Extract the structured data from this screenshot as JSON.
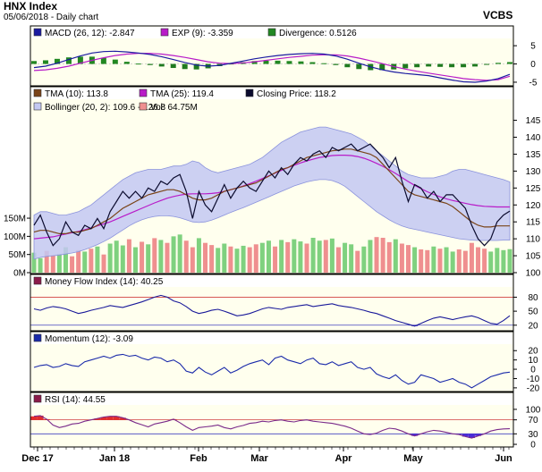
{
  "header": {
    "title": "HNX Index",
    "subtitle": "05/06/2018 - Daily chart",
    "brand": "VCBS"
  },
  "colors": {
    "panel_bg": "#ffffee",
    "frame": "#000000",
    "band_fill": "#c3c8f2",
    "band_edge": "#8a92dc",
    "price_line": "#0b0b2e",
    "tma10": "#7a4418",
    "tma25": "#b81bc8",
    "macd_line": "#1a1aa0",
    "exp_line": "#b81bc8",
    "divergence_pos": "#228822",
    "divergence_neg": "#1f7a1f",
    "vol_up": "#7fd17f",
    "vol_down": "#ef8f8f",
    "mfi_line": "#1a1a9a",
    "rsi_line": "#7a2a8a",
    "overbought_fill": "#e22c2c",
    "oversold_fill": "#4a2bd8",
    "mom_line": "#1a2aaa"
  },
  "x_axis_labels": [
    "Dec 17",
    "Jan 18",
    "Feb",
    "Mar",
    "Apr",
    "May",
    "Jun"
  ],
  "chart_data": [
    {
      "type": "line",
      "panel": "macd",
      "legend": [
        {
          "text": "MACD (26, 12): -2.847",
          "color": "#1a1aa0",
          "icon": "square-swatch-icon"
        },
        {
          "text": "EXP (9): -3.359",
          "color": "#b81bc8",
          "icon": "square-swatch-icon"
        },
        {
          "text": "Divergence: 0.5126",
          "color": "#228822",
          "icon": "square-swatch-icon"
        }
      ],
      "yticks": [
        "5",
        "0",
        "-5"
      ],
      "ylim": [
        -5.5,
        6.5
      ],
      "series": [
        {
          "name": "MACD (26, 12)",
          "values": [
            -1.0,
            -0.6,
            0.2,
            1.2,
            2.2,
            3.0,
            3.4,
            3.5,
            3.3,
            3.0,
            2.6,
            2.0,
            1.2,
            0.4,
            -0.3,
            -0.6,
            -0.4,
            0.2,
            0.8,
            1.4,
            1.9,
            2.3,
            2.6,
            2.8,
            2.9,
            2.7,
            2.2,
            1.3,
            0.2,
            -0.8,
            -1.6,
            -2.2,
            -2.6,
            -2.9,
            -3.2,
            -3.8,
            -4.4,
            -4.9,
            -5.0,
            -4.7,
            -4.0,
            -2.847
          ]
        },
        {
          "name": "EXP (9)",
          "values": [
            -1.8,
            -1.6,
            -1.2,
            -0.6,
            0.2,
            1.0,
            1.7,
            2.3,
            2.7,
            2.9,
            2.9,
            2.7,
            2.3,
            1.8,
            1.2,
            0.6,
            0.2,
            0.1,
            0.3,
            0.6,
            1.0,
            1.4,
            1.8,
            2.1,
            2.4,
            2.5,
            2.5,
            2.2,
            1.6,
            0.9,
            0.1,
            -0.7,
            -1.4,
            -2.0,
            -2.5,
            -3.0,
            -3.5,
            -4.0,
            -4.3,
            -4.5,
            -4.3,
            -3.359
          ]
        },
        {
          "name": "Divergence",
          "values": [
            0.8,
            1.0,
            1.4,
            1.8,
            2.0,
            2.0,
            1.7,
            1.2,
            0.6,
            0.1,
            -0.3,
            -0.7,
            -1.1,
            -1.4,
            -1.5,
            -1.2,
            -0.6,
            0.1,
            0.5,
            0.8,
            0.9,
            0.9,
            0.8,
            0.7,
            0.5,
            0.2,
            -0.3,
            -0.9,
            -1.4,
            -1.7,
            -1.7,
            -1.5,
            -1.2,
            -0.9,
            -0.7,
            -0.8,
            -0.9,
            -0.9,
            -0.7,
            -0.2,
            0.3,
            0.5126
          ]
        }
      ]
    },
    {
      "type": "line",
      "panel": "price",
      "legend": [
        {
          "text": "TMA (10): 113.8",
          "color": "#7a4418",
          "icon": "square-swatch-icon"
        },
        {
          "text": "TMA (25): 119.4",
          "color": "#b81bc8",
          "icon": "square-swatch-icon"
        },
        {
          "text": "Closing Price: 118.2",
          "color": "#0b0b2e",
          "icon": "square-swatch-icon"
        },
        {
          "text": "Bollinger (20, 2): 109.6 - 126.8",
          "color": "#c3c8f2",
          "icon": "square-swatch-icon"
        },
        {
          "text": "Vol: 64.75M",
          "color": "#ef8f8f",
          "icon": "square-swatch-icon"
        }
      ],
      "yticks": [
        "145",
        "140",
        "135",
        "130",
        "125",
        "120",
        "115",
        "110",
        "105",
        "100"
      ],
      "ylim": [
        100,
        147
      ],
      "vol_ticks": [
        "150M",
        "100M",
        "50M",
        "0M"
      ],
      "vol_ylim": [
        0,
        160
      ],
      "series": [
        {
          "name": "Closing Price",
          "values": [
            114,
            117,
            112,
            108,
            110,
            115,
            112,
            111,
            114,
            113,
            116,
            113,
            118,
            121,
            124,
            122,
            124,
            122,
            125,
            124,
            127,
            126,
            128,
            129,
            124,
            116,
            124,
            120,
            118,
            122,
            126,
            122,
            125,
            127,
            125,
            124,
            127,
            130,
            128,
            131,
            129,
            132,
            134,
            133,
            135,
            136,
            134,
            137,
            136,
            137,
            138,
            136,
            137,
            138,
            136,
            134,
            131,
            134,
            127,
            121,
            126,
            125,
            122,
            124,
            121,
            123,
            123,
            121,
            119,
            114,
            110,
            108,
            110,
            115,
            117,
            118.2
          ]
        },
        {
          "name": "TMA (10)",
          "values": [
            112,
            112.5,
            112.5,
            112,
            111.5,
            111.5,
            112,
            112,
            112.5,
            113,
            114,
            115,
            116,
            117.5,
            119,
            120,
            121,
            122,
            123,
            123.5,
            124,
            124.5,
            124.5,
            124,
            123,
            122,
            121.5,
            121.5,
            122,
            123,
            124,
            124.5,
            125,
            125.5,
            126,
            126.5,
            127.5,
            128.5,
            129.5,
            130.5,
            131,
            132,
            133,
            134,
            134.5,
            135,
            135.5,
            136,
            136.2,
            136.5,
            136.5,
            136,
            135.5,
            135,
            134,
            132,
            130,
            128,
            126,
            124,
            123,
            122.5,
            122,
            121.5,
            121,
            120.5,
            119.5,
            118,
            116.5,
            115,
            114,
            113.5,
            113.5,
            113.8,
            113.8,
            113.8
          ]
        },
        {
          "name": "TMA (25)",
          "values": [
            110,
            110.2,
            110.4,
            110.6,
            111,
            111.4,
            111.8,
            112.2,
            112.7,
            113.2,
            113.8,
            114.4,
            115,
            115.8,
            116.6,
            117.4,
            118.2,
            119,
            119.8,
            120.6,
            121.3,
            122,
            122.5,
            122.9,
            123.2,
            123.3,
            123.3,
            123.3,
            123.4,
            123.6,
            124,
            124.5,
            125,
            125.6,
            126.3,
            127,
            127.8,
            128.6,
            129.4,
            130.2,
            131,
            131.7,
            132.4,
            133,
            133.5,
            134,
            134.3,
            134.6,
            134.7,
            134.7,
            134.6,
            134.3,
            133.8,
            133.1,
            132.3,
            131.4,
            130.4,
            129.3,
            128.1,
            126.9,
            125.8,
            124.8,
            123.9,
            123.1,
            122.4,
            121.8,
            121.3,
            120.9,
            120.5,
            120.1,
            119.8,
            119.6,
            119.5,
            119.4,
            119.4,
            119.4
          ]
        },
        {
          "name": "Bollinger upper",
          "values": [
            117,
            118,
            118,
            117.5,
            117,
            117,
            117.5,
            118,
            119,
            120,
            121.5,
            123,
            124.5,
            126,
            127.5,
            128.5,
            129.5,
            130,
            130.5,
            130.5,
            130.5,
            131,
            131.5,
            131.5,
            132,
            133,
            132.5,
            131,
            130,
            129.5,
            130,
            130.5,
            131,
            131.5,
            132,
            133,
            134,
            135.5,
            137,
            138.5,
            139.5,
            140.5,
            141.5,
            142,
            142.5,
            143,
            143,
            142.5,
            142,
            141.5,
            141,
            140,
            139,
            137.5,
            136,
            134.5,
            133,
            131.5,
            130,
            129,
            128.5,
            128,
            128,
            128,
            128.5,
            129,
            130,
            130.5,
            130.5,
            130,
            129.5,
            129,
            128.5,
            128,
            127.5,
            126.8
          ]
        },
        {
          "name": "Bollinger lower",
          "values": [
            104,
            104.5,
            104.8,
            105,
            105.2,
            105.5,
            105.8,
            106.2,
            106.8,
            107.5,
            108.3,
            109.2,
            110.2,
            111.4,
            112.6,
            113.8,
            114.8,
            115.6,
            116.2,
            116.6,
            116.8,
            116.8,
            116.6,
            116.2,
            115.6,
            115,
            114.8,
            115,
            115.5,
            116.2,
            117,
            117.8,
            118.5,
            119.2,
            120,
            120.8,
            121.6,
            122.4,
            123.2,
            124,
            124.8,
            125.6,
            126.2,
            126.8,
            127.2,
            127.5,
            127.5,
            127.2,
            126.5,
            125.5,
            124,
            122.5,
            121,
            119.5,
            118,
            116.8,
            115.6,
            114.6,
            113.8,
            113.2,
            112.8,
            112.4,
            112,
            111.6,
            111.2,
            110.8,
            110.4,
            110,
            109.8,
            109.6,
            109.5,
            109.5,
            109.5,
            109.5,
            109.6,
            109.6
          ]
        },
        {
          "name": "Vol",
          "values": [
            55,
            40,
            60,
            48,
            52,
            70,
            45,
            62,
            58,
            66,
            72,
            50,
            80,
            88,
            75,
            92,
            70,
            85,
            78,
            95,
            90,
            82,
            100,
            105,
            88,
            70,
            95,
            82,
            76,
            68,
            80,
            72,
            66,
            74,
            70,
            78,
            82,
            88,
            72,
            90,
            84,
            92,
            86,
            80,
            96,
            88,
            90,
            94,
            70,
            82,
            78,
            60,
            72,
            90,
            98,
            96,
            84,
            92,
            80,
            76,
            70,
            64,
            62,
            72,
            66,
            70,
            58,
            64,
            60,
            82,
            70,
            66,
            58,
            68,
            62,
            64.75
          ]
        }
      ]
    },
    {
      "type": "line",
      "panel": "mfi",
      "legend": [
        {
          "text": "Money Flow Index (14): 40.25",
          "color": "#8a1a4a",
          "icon": "square-swatch-icon"
        }
      ],
      "yticks": [
        "80",
        "50",
        "20"
      ],
      "ylim": [
        10,
        100
      ],
      "bands": [
        20,
        80
      ],
      "series": [
        {
          "name": "Money Flow Index (14)",
          "values": [
            55,
            52,
            57,
            60,
            58,
            55,
            50,
            45,
            48,
            52,
            55,
            58,
            62,
            60,
            58,
            62,
            66,
            70,
            75,
            80,
            84,
            80,
            72,
            68,
            60,
            50,
            45,
            48,
            52,
            54,
            50,
            45,
            40,
            42,
            45,
            50,
            55,
            58,
            56,
            54,
            58,
            60,
            62,
            64,
            60,
            62,
            64,
            66,
            62,
            60,
            58,
            55,
            52,
            48,
            45,
            40,
            35,
            30,
            26,
            22,
            18,
            24,
            30,
            35,
            38,
            35,
            32,
            35,
            38,
            40,
            36,
            30,
            24,
            22,
            30,
            40.25
          ]
        }
      ]
    },
    {
      "type": "line",
      "panel": "momentum",
      "legend": [
        {
          "text": "Momentum (12): -3.09",
          "color": "#1a2aaa",
          "icon": "square-swatch-icon"
        }
      ],
      "yticks": [
        "20",
        "10",
        "0",
        "-10",
        "-20"
      ],
      "ylim": [
        -23,
        26
      ],
      "series": [
        {
          "name": "Momentum (12)",
          "values": [
            2,
            4,
            5,
            2,
            3,
            6,
            4,
            3,
            8,
            10,
            12,
            14,
            12,
            15,
            16,
            14,
            15,
            12,
            10,
            13,
            12,
            8,
            10,
            6,
            -2,
            -4,
            2,
            -3,
            -6,
            -2,
            2,
            -4,
            -1,
            3,
            6,
            8,
            10,
            5,
            12,
            14,
            10,
            8,
            6,
            10,
            12,
            6,
            5,
            8,
            4,
            6,
            8,
            2,
            0,
            2,
            -5,
            -8,
            -10,
            -6,
            -12,
            -16,
            -14,
            -6,
            -8,
            -10,
            -14,
            -12,
            -10,
            -14,
            -16,
            -20,
            -16,
            -12,
            -8,
            -6,
            -4,
            -3.09
          ]
        }
      ]
    },
    {
      "type": "line",
      "panel": "rsi",
      "legend": [
        {
          "text": "RSI (14): 44.55",
          "color": "#8a1a4a",
          "icon": "square-swatch-icon"
        }
      ],
      "yticks": [
        "100",
        "70",
        "30",
        "0"
      ],
      "ylim": [
        -5,
        110
      ],
      "bands": [
        30,
        70
      ],
      "series": [
        {
          "name": "RSI (14)",
          "values": [
            80,
            82,
            72,
            55,
            48,
            52,
            58,
            60,
            66,
            70,
            74,
            78,
            80,
            80,
            76,
            70,
            62,
            56,
            50,
            58,
            62,
            66,
            72,
            62,
            50,
            40,
            48,
            50,
            52,
            55,
            48,
            44,
            50,
            54,
            60,
            62,
            66,
            64,
            68,
            70,
            66,
            64,
            68,
            70,
            66,
            64,
            62,
            60,
            56,
            52,
            46,
            38,
            30,
            28,
            32,
            40,
            46,
            44,
            38,
            30,
            24,
            30,
            36,
            40,
            38,
            34,
            30,
            28,
            22,
            18,
            24,
            30,
            38,
            42,
            44,
            44.55
          ]
        }
      ]
    }
  ]
}
